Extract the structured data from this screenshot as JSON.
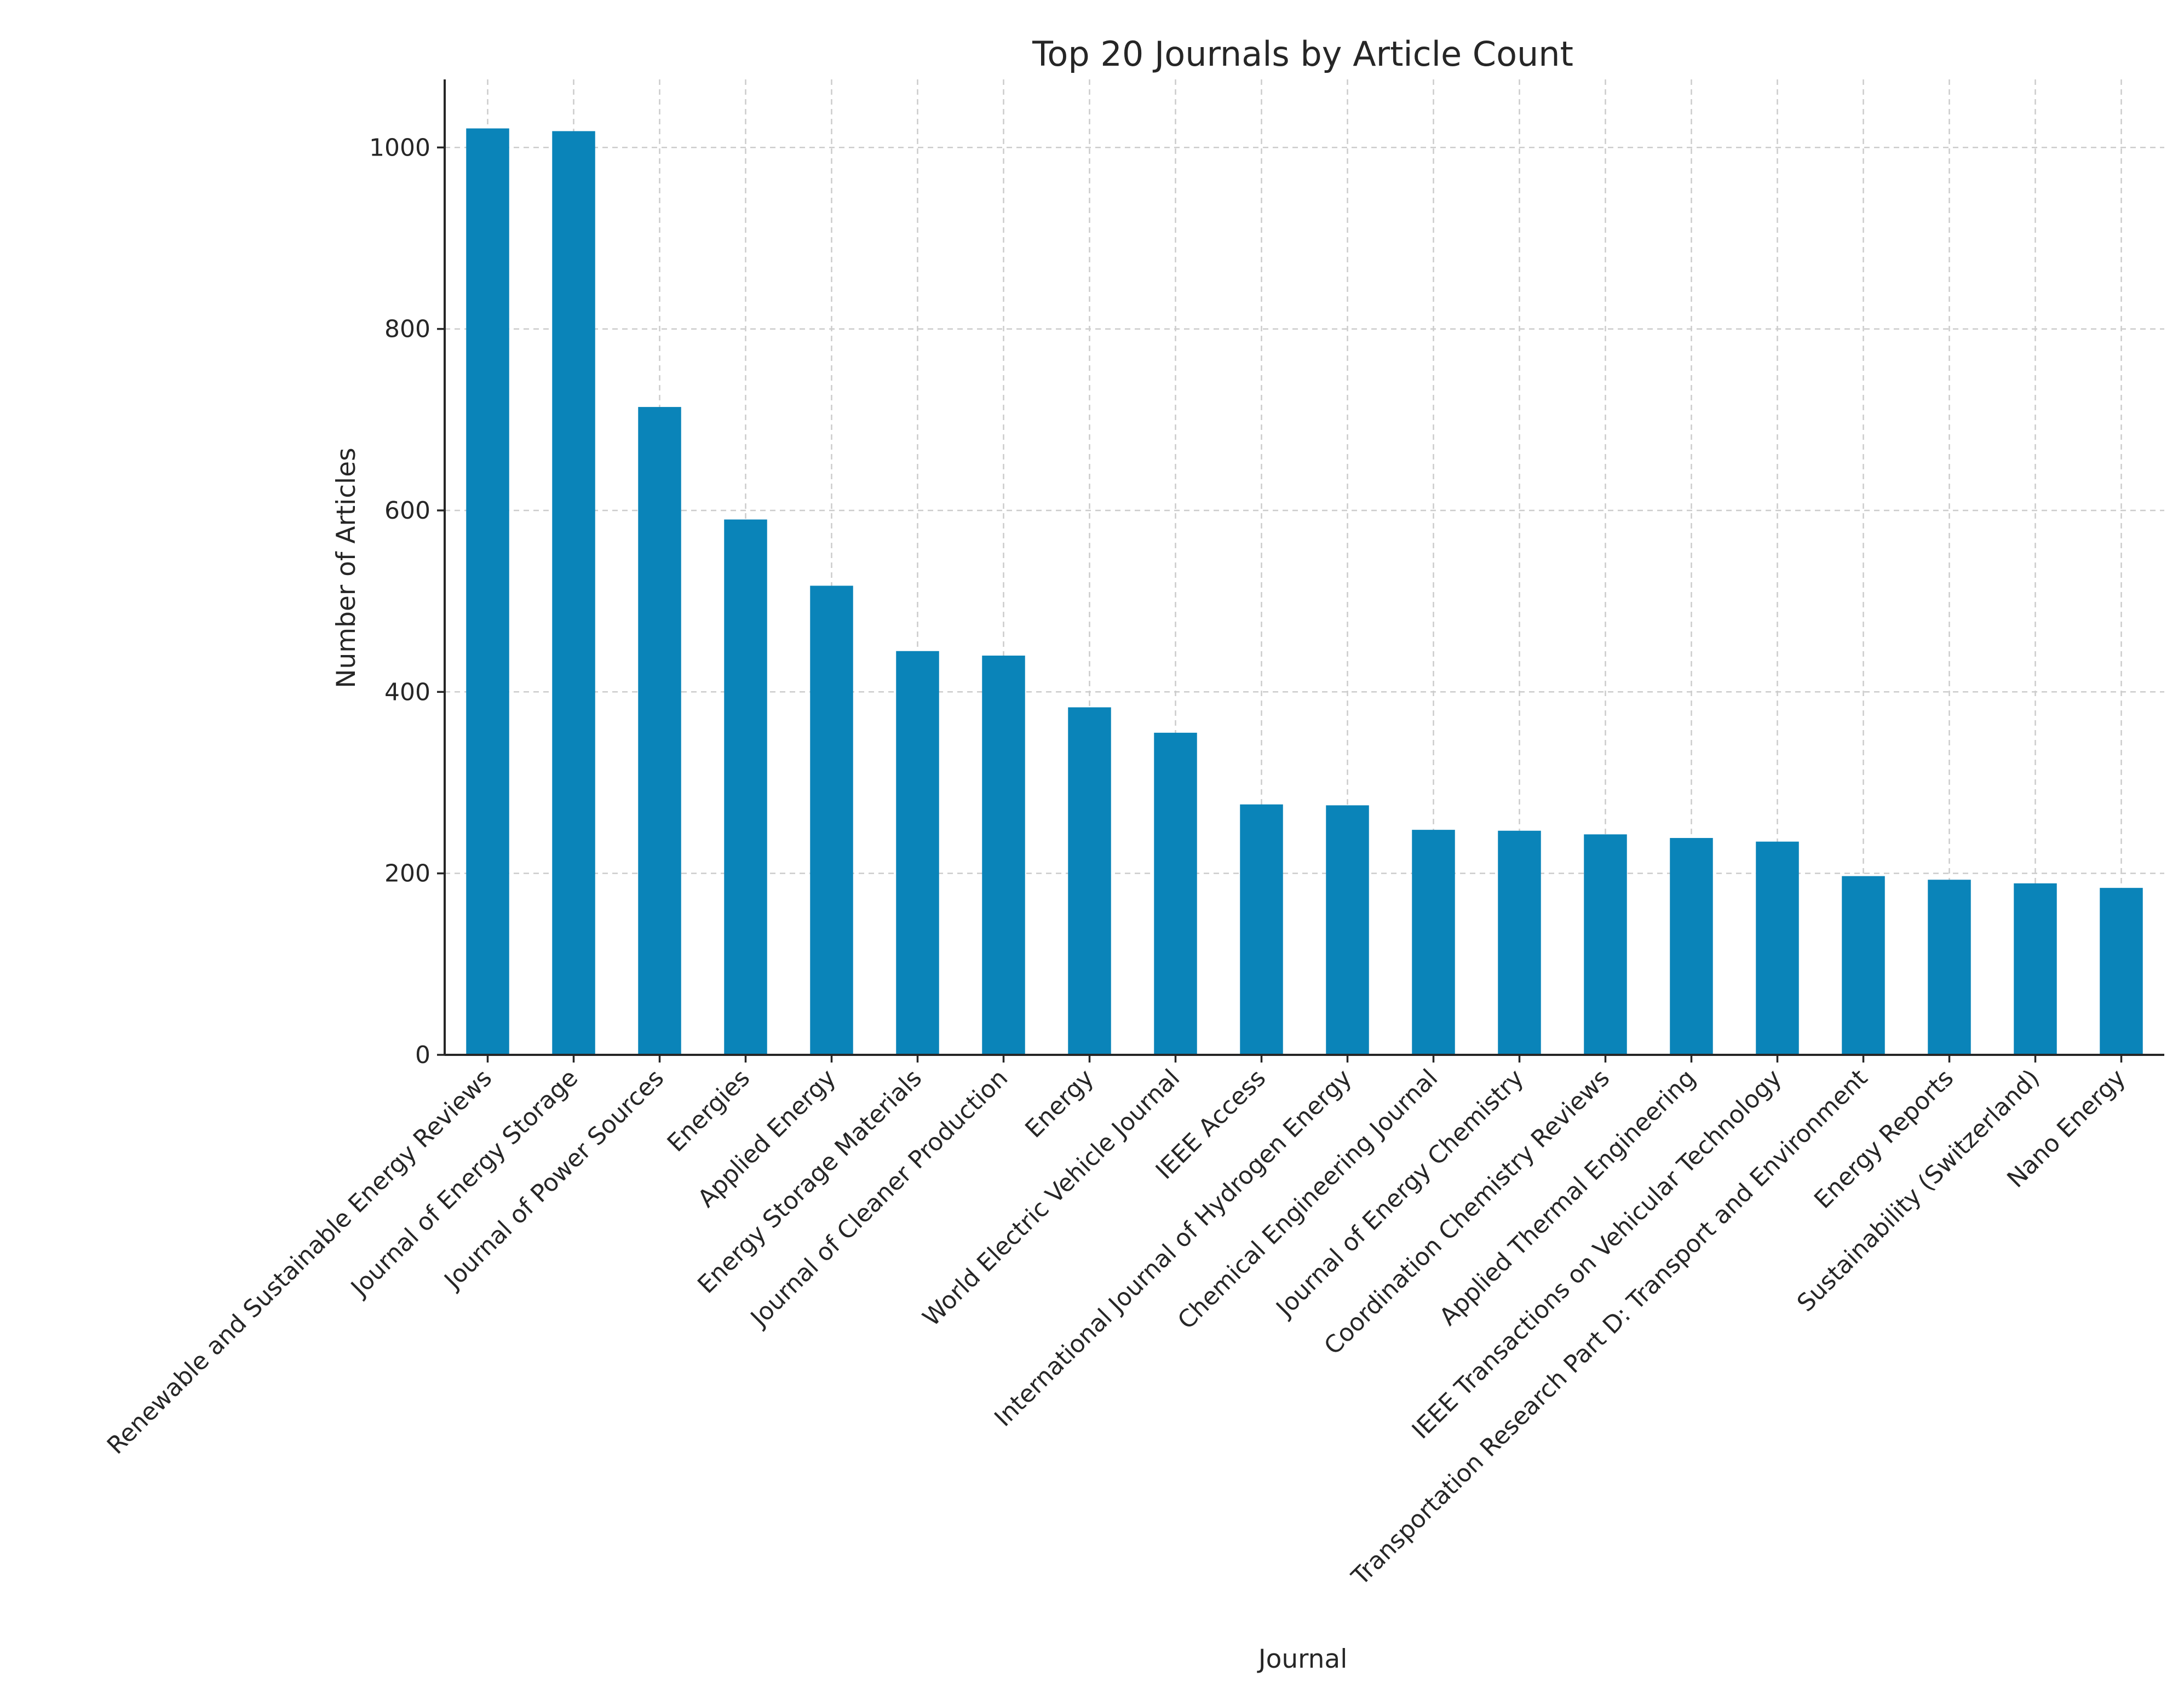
{
  "chart_data": {
    "type": "bar",
    "title": "Top 20 Journals by Article Count",
    "xlabel": "Journal",
    "ylabel": "Number of Articles",
    "ylim": [
      0,
      1075
    ],
    "yticks": [
      0,
      200,
      400,
      600,
      800,
      1000
    ],
    "grid": true,
    "bar_color": "#0a84b9",
    "axis_color": "#262626",
    "grid_color": "#cccccc",
    "categories": [
      "Renewable and Sustainable Energy Reviews",
      "Journal of Energy Storage",
      "Journal of Power Sources",
      "Energies",
      "Applied Energy",
      "Energy Storage Materials",
      "Journal of Cleaner Production",
      "Energy",
      "World Electric Vehicle Journal",
      "IEEE Access",
      "International Journal of Hydrogen Energy",
      "Chemical Engineering Journal",
      "Journal of Energy Chemistry",
      "Coordination Chemistry Reviews",
      "Applied Thermal Engineering",
      "IEEE Transactions on Vehicular Technology",
      "Transportation Research Part D: Transport and Environment",
      "Energy Reports",
      "Sustainability (Switzerland)",
      "Nano Energy"
    ],
    "values": [
      1021,
      1018,
      714,
      590,
      517,
      445,
      440,
      383,
      355,
      276,
      275,
      248,
      247,
      243,
      239,
      235,
      197,
      193,
      189,
      184
    ]
  }
}
